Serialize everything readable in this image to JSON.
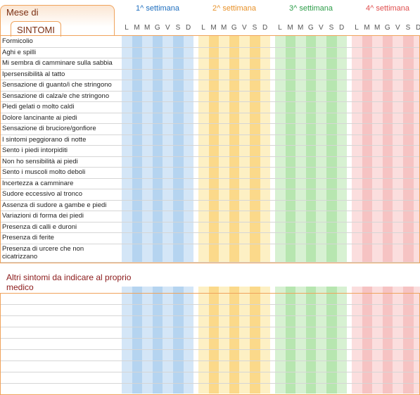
{
  "header": {
    "month_label": "Mese di",
    "symptoms_label": "SINTOMI"
  },
  "weeks": [
    {
      "label": "1^ settimana",
      "color": "#1f6fbf"
    },
    {
      "label": "2^ settimana",
      "color": "#e8922a"
    },
    {
      "label": "3^ settimana",
      "color": "#2e9e4a"
    },
    {
      "label": "4^ settimana",
      "color": "#e05050"
    }
  ],
  "days": [
    "L",
    "M",
    "M",
    "G",
    "V",
    "S",
    "D"
  ],
  "symptoms": [
    "Formicolio",
    "Aghi e spilli",
    "Mi sembra di camminare sulla sabbia",
    "Ipersensibilità al tatto",
    "Sensazione di guanto/i che stringono",
    "Sensazione di calza/e che stringono",
    "Piedi gelati o molto caldi",
    "Dolore lancinante ai piedi",
    "Sensazione di bruciore/gonfiore",
    "I sintomi peggiorano di notte",
    "Sento i piedi intorpiditi",
    "Non ho sensibilità ai piedi",
    "Sento i muscoli molto deboli",
    "Incertezza a camminare",
    "Sudore eccessivo al tronco",
    "Assenza di sudore a gambe e piedi",
    "Variazioni di forma dei piedi",
    "Presenza di calli e duroni",
    "Presenza di ferite",
    "Presenza di urcere che non cicatrizzano"
  ],
  "extra_section": {
    "title": "Altri sintomi da indicare al proprio medico"
  },
  "colors": {
    "week1": [
      "#d4e6f7",
      "#b5d4f0"
    ],
    "week2": [
      "#fdf0c4",
      "#fbd98a"
    ],
    "week3": [
      "#d7f1d2",
      "#b7e6b0"
    ],
    "week4": [
      "#fbdede",
      "#f6c3c3"
    ],
    "border": "#f0a35c"
  }
}
